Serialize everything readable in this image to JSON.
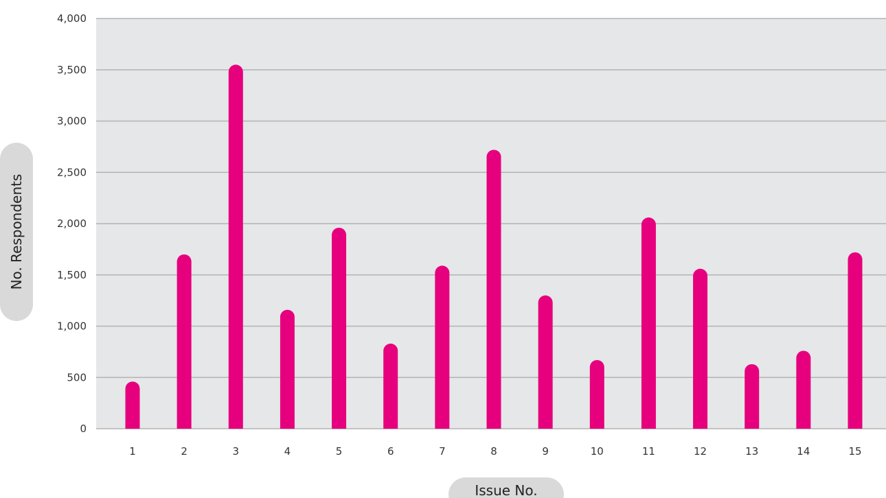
{
  "colors": {
    "bar": "#e6007e",
    "plot_background": "#e6e7e8",
    "gridline": "#b3b3b3",
    "pill": "#d9d9d9",
    "page_background": "#ffffff"
  },
  "chart_data": {
    "type": "bar",
    "title": "",
    "xlabel": "Issue No.",
    "ylabel": "No. Respondents",
    "categories": [
      "1",
      "2",
      "3",
      "4",
      "5",
      "6",
      "7",
      "8",
      "9",
      "10",
      "11",
      "12",
      "13",
      "14",
      "15"
    ],
    "values": [
      460,
      1700,
      3550,
      1160,
      1960,
      830,
      1590,
      2720,
      1300,
      670,
      2060,
      1560,
      630,
      760,
      1720
    ],
    "ylim": [
      0,
      4000
    ],
    "yticks": [
      0,
      500,
      1000,
      1500,
      2000,
      2500,
      3000,
      3500,
      4000
    ],
    "ytick_labels": [
      "0",
      "500",
      "1,000",
      "1,500",
      "2,000",
      "2,500",
      "3,000",
      "3,500",
      "4,000"
    ],
    "grid": true,
    "legend": "none"
  }
}
